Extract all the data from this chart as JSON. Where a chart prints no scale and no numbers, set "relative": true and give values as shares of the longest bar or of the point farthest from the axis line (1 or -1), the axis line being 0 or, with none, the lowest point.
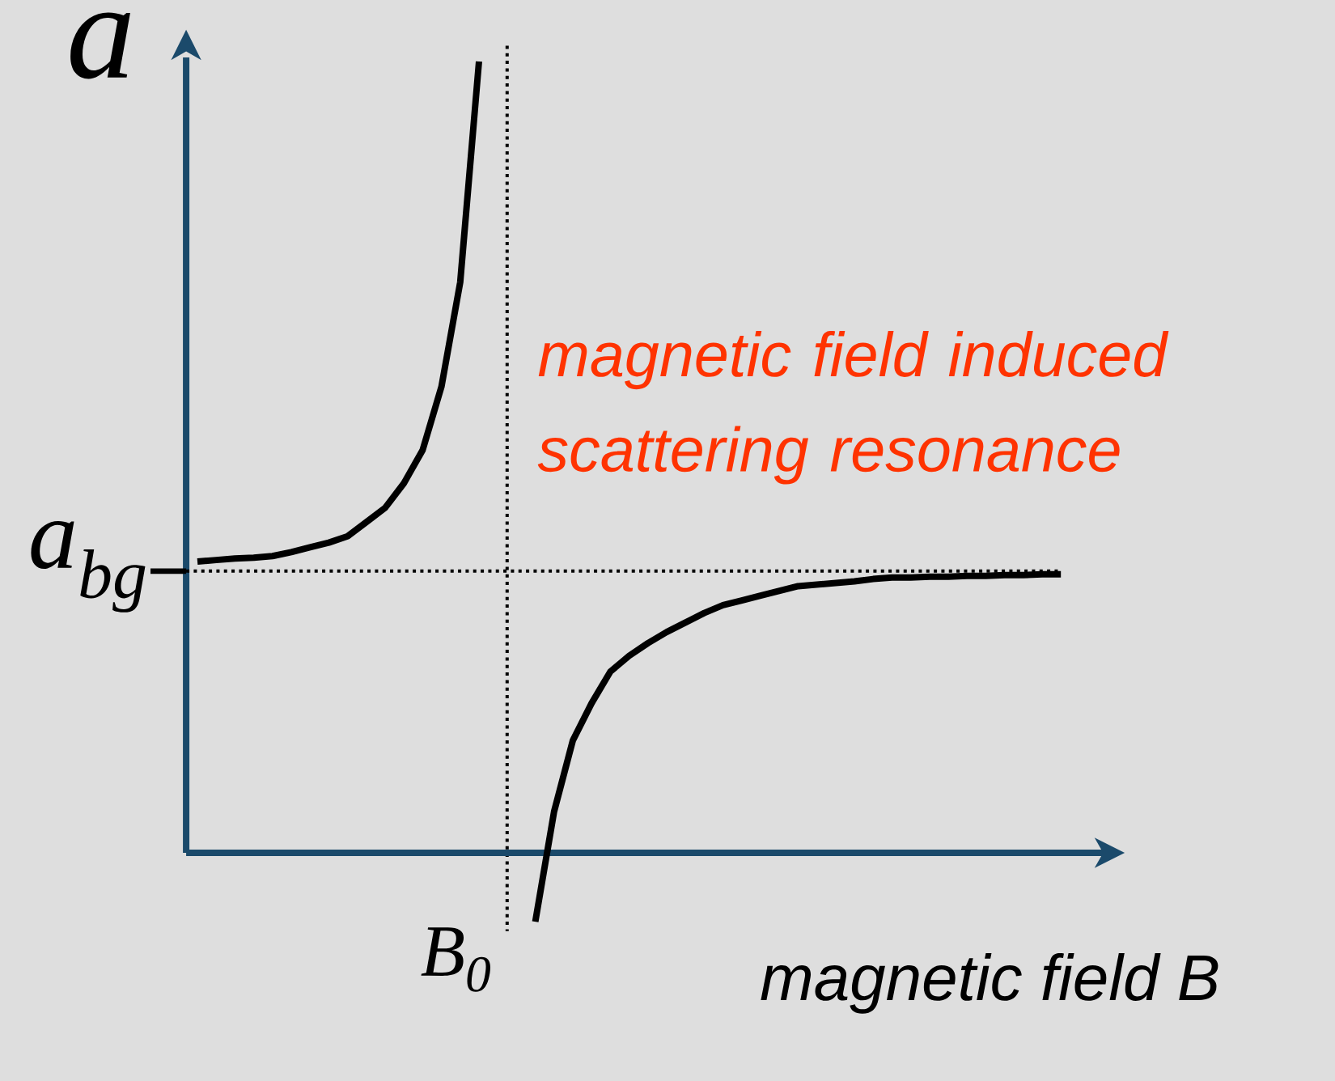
{
  "chart_data": {
    "type": "line",
    "relative": true,
    "ylabel": "a",
    "xlabel": "magnetic field B",
    "categories": [
      null,
      null,
      null,
      null,
      null,
      null,
      null,
      null,
      null,
      null,
      null,
      null,
      null,
      null,
      null,
      null,
      null,
      null,
      null,
      null,
      null,
      null,
      null,
      null,
      null,
      null,
      null,
      null,
      null,
      null,
      null,
      null,
      null,
      null,
      null,
      null,
      null,
      null,
      null,
      null,
      null,
      null,
      null,
      null,
      null,
      null,
      null
    ],
    "series": [
      {
        "color": "#000000",
        "values": [
          0.368,
          0.37,
          0.372,
          0.373,
          0.375,
          0.38,
          0.386,
          0.392,
          0.4,
          0.418,
          0.436,
          0.467,
          0.509,
          0.589,
          0.721,
          1.0,
          null,
          null,
          null,
          null,
          null,
          null,
          null,
          null,
          null,
          null,
          null,
          null,
          null,
          null,
          null,
          null,
          null,
          null,
          null,
          null,
          null,
          null,
          null,
          null,
          null,
          null,
          null,
          null,
          null,
          null,
          null
        ]
      },
      {
        "color": "#000000",
        "values": [
          null,
          null,
          null,
          null,
          null,
          null,
          null,
          null,
          null,
          null,
          null,
          null,
          null,
          null,
          null,
          null,
          null,
          null,
          -0.087,
          0.052,
          0.142,
          0.189,
          0.229,
          0.249,
          0.265,
          0.279,
          0.291,
          0.303,
          0.313,
          0.319,
          0.325,
          0.331,
          0.337,
          0.339,
          0.341,
          0.343,
          0.346,
          0.348,
          0.348,
          0.349,
          0.349,
          0.35,
          0.35,
          0.351,
          0.351,
          0.352,
          0.352
        ]
      }
    ],
    "ref_lines": [
      {
        "axis": "x",
        "value": "B$_{0}$",
        "line_style": "dotted"
      },
      {
        "axis": "y",
        "value": 0.356,
        "label": "a$_{bg}$",
        "line_style": "dotted"
      },
      {
        "axis": "y",
        "value": 0,
        "color": "#1b4a6b",
        "line_style": "solid"
      }
    ],
    "annotations": [
      "magnetic field induced scattering resonance"
    ]
  }
}
